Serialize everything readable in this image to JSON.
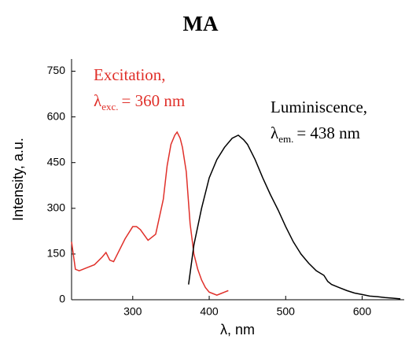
{
  "chart_data": {
    "type": "line",
    "title": "MA",
    "x_label": "λ, nm",
    "y_label": "Intensity, a.u.",
    "xlim": [
      220,
      655
    ],
    "ylim": [
      0,
      790
    ],
    "xticks": [
      300,
      400,
      500,
      600
    ],
    "yticks": [
      0,
      150,
      300,
      450,
      600,
      750
    ],
    "grid": false,
    "series": [
      {
        "color": "#e0302a",
        "x": [
          220,
          225,
          230,
          240,
          250,
          260,
          265,
          270,
          275,
          280,
          290,
          300,
          305,
          310,
          320,
          330,
          340,
          345,
          350,
          355,
          358,
          362,
          365,
          370,
          375,
          380,
          385,
          390,
          395,
          400,
          405,
          410,
          415,
          420,
          425
        ],
        "values": [
          190,
          100,
          95,
          105,
          115,
          140,
          155,
          130,
          125,
          150,
          200,
          240,
          240,
          230,
          195,
          215,
          330,
          440,
          510,
          540,
          550,
          530,
          500,
          420,
          250,
          150,
          100,
          65,
          40,
          25,
          20,
          15,
          20,
          25,
          30
        ]
      },
      {
        "color": "#000000",
        "x": [
          373,
          380,
          390,
          400,
          410,
          420,
          430,
          438,
          445,
          450,
          460,
          470,
          480,
          490,
          500,
          510,
          520,
          530,
          540,
          550,
          555,
          560,
          570,
          580,
          590,
          600,
          610,
          620,
          630,
          640,
          650
        ],
        "values": [
          50,
          180,
          300,
          400,
          460,
          500,
          530,
          540,
          525,
          510,
          460,
          400,
          345,
          295,
          240,
          190,
          150,
          120,
          95,
          80,
          60,
          50,
          40,
          30,
          22,
          17,
          12,
          10,
          7,
          5,
          3
        ]
      }
    ],
    "annotations": [
      {
        "color": "#e0302a",
        "text": "Excitation,",
        "symbol": "λ",
        "sub": "exc.",
        "rest": "= 360 nm"
      },
      {
        "color": "#000000",
        "text": "Luminiscence,",
        "symbol": "λ",
        "sub": "em.",
        "rest": "= 438 nm"
      }
    ]
  }
}
